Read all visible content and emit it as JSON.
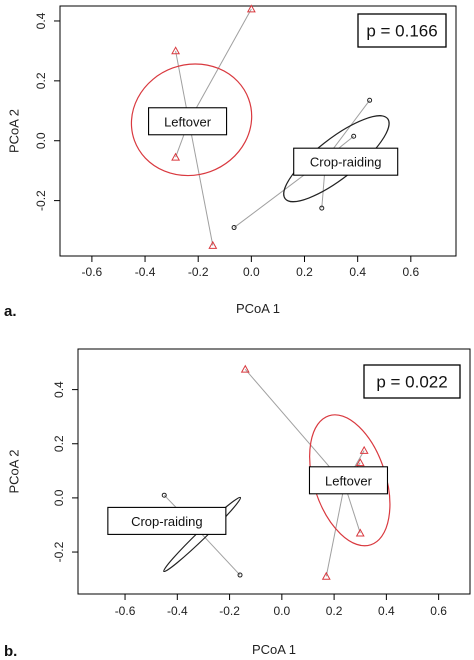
{
  "colors": {
    "leftover": "#d9393f",
    "crop_raiding": "#222222",
    "segment": "#a0a0a0",
    "frame": "#000000"
  },
  "chart_data": [
    {
      "type": "scatter",
      "panel": "a.",
      "xlabel": "PCoA 1",
      "ylabel": "PCoA 2",
      "xlim": [
        -0.72,
        0.77
      ],
      "ylim": [
        -0.385,
        0.45
      ],
      "xticks": [
        "-0.6",
        "-0.4",
        "-0.2",
        "0.0",
        "0.2",
        "0.4",
        "0.6"
      ],
      "xtick_values": [
        -0.6,
        -0.4,
        -0.2,
        0.0,
        0.2,
        0.4,
        0.6
      ],
      "yticks": [
        "0.4",
        "0.2",
        "0.0",
        "-0.2"
      ],
      "ytick_values": [
        0.4,
        0.2,
        0.0,
        -0.2
      ],
      "p_value": "p = 0.166",
      "series": [
        {
          "name": "Leftover",
          "marker": "triangle",
          "centroid": [
            -0.235,
            0.065
          ],
          "points": [
            [
              0.0,
              0.44
            ],
            [
              -0.285,
              0.3
            ],
            [
              -0.285,
              -0.055
            ],
            [
              -0.145,
              -0.35
            ]
          ],
          "ellipse": {
            "cx": -0.225,
            "cy": 0.07,
            "rx": 0.215,
            "ry": 0.195,
            "angle": -20
          },
          "label_pos": [
            -0.24,
            0.065
          ]
        },
        {
          "name": "Crop-raiding",
          "marker": "circle",
          "centroid": [
            0.28,
            -0.06
          ],
          "points": [
            [
              0.445,
              0.135
            ],
            [
              0.385,
              0.015
            ],
            [
              0.265,
              -0.225
            ],
            [
              -0.065,
              -0.29
            ]
          ],
          "ellipse": {
            "cx": 0.32,
            "cy": -0.06,
            "rx": 0.23,
            "ry": 0.07,
            "angle": -38
          },
          "label_pos": [
            0.355,
            -0.07
          ]
        }
      ]
    },
    {
      "type": "scatter",
      "panel": "b.",
      "xlabel": "PCoA 1",
      "ylabel": "PCoA 2",
      "xlim": [
        -0.78,
        0.72
      ],
      "ylim": [
        -0.355,
        0.55
      ],
      "xticks": [
        "-0.6",
        "-0.4",
        "-0.2",
        "0.0",
        "0.2",
        "0.4",
        "0.6"
      ],
      "xtick_values": [
        -0.6,
        -0.4,
        -0.2,
        0.0,
        0.2,
        0.4,
        0.6
      ],
      "yticks": [
        "0.4",
        "0.2",
        "0.0",
        "-0.2"
      ],
      "yticks_values_note": "",
      "ytick_values": [
        0.4,
        0.2,
        0.0,
        -0.2
      ],
      "p_value": "p = 0.022",
      "series": [
        {
          "name": "Leftover",
          "marker": "triangle",
          "centroid": [
            0.24,
            0.05
          ],
          "points": [
            [
              -0.14,
              0.475
            ],
            [
              0.315,
              0.175
            ],
            [
              0.3,
              0.13
            ],
            [
              0.3,
              -0.13
            ],
            [
              0.17,
              -0.29
            ]
          ],
          "ellipse": {
            "cx": 0.26,
            "cy": 0.065,
            "rx": 0.255,
            "ry": 0.135,
            "angle": 72
          },
          "label_pos": [
            0.255,
            0.065
          ]
        },
        {
          "name": "Crop-raiding",
          "marker": "circle",
          "centroid": [
            -0.31,
            -0.13
          ],
          "points": [
            [
              -0.45,
              0.01
            ],
            [
              -0.16,
              -0.285
            ]
          ],
          "ellipse": {
            "cx": -0.305,
            "cy": -0.135,
            "rx": 0.2,
            "ry": 0.016,
            "angle": -44
          },
          "label_pos": [
            -0.44,
            -0.085
          ]
        }
      ]
    }
  ]
}
